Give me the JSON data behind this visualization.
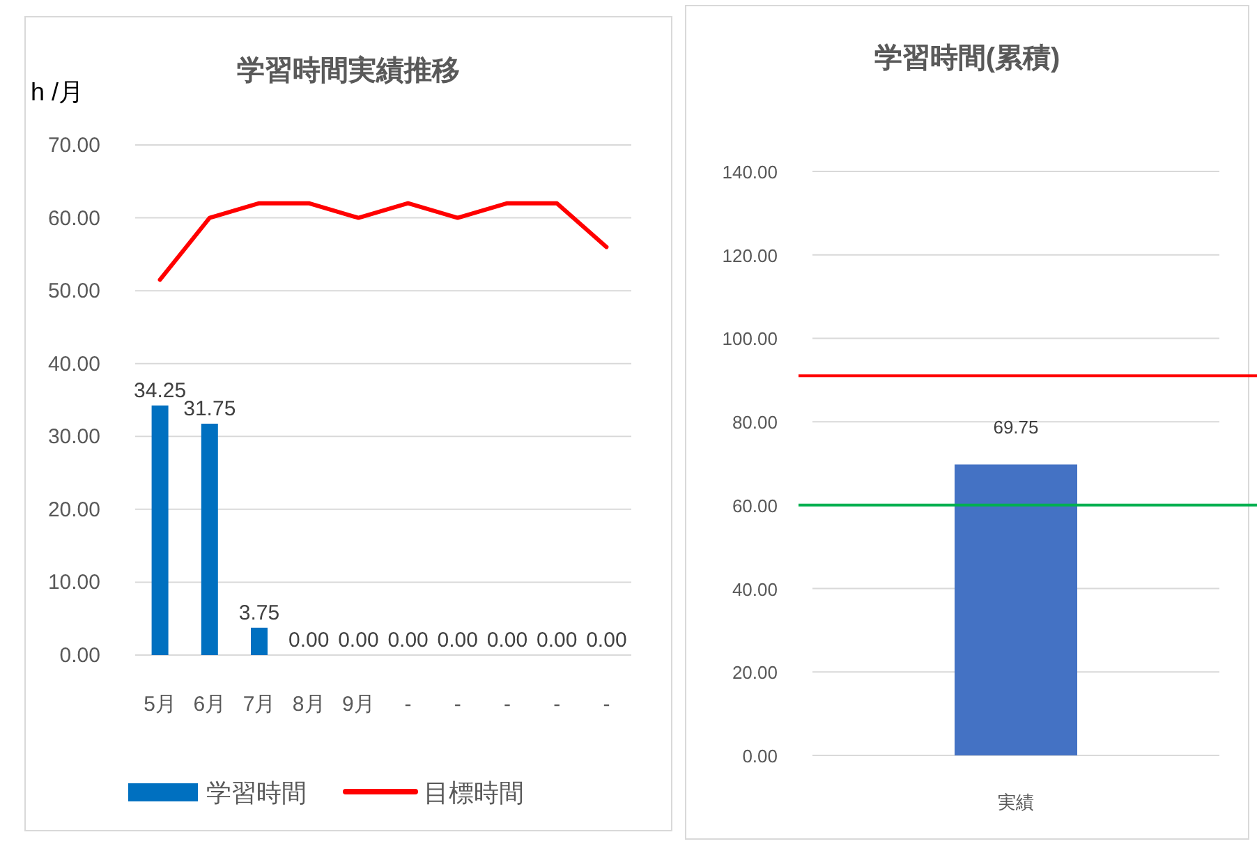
{
  "chart_data": [
    {
      "type": "bar",
      "title": "学習時間実績推移",
      "ylabel": "h /月",
      "categories": [
        "5月",
        "6月",
        "7月",
        "8月",
        "9月",
        "-",
        "-",
        "-",
        "-",
        "-"
      ],
      "series": [
        {
          "name": "学習時間",
          "type": "bar",
          "color": "#0070c0",
          "values": [
            34.25,
            31.75,
            3.75,
            0,
            0,
            0,
            0,
            0,
            0,
            0
          ],
          "value_labels": [
            "34.25",
            "31.75",
            "3.75",
            "0.00",
            "0.00",
            "0.00",
            "0.00",
            "0.00",
            "0.00",
            "0.00"
          ]
        },
        {
          "name": "目標時間",
          "type": "line",
          "color": "#ff0000",
          "values": [
            51.5,
            60,
            62,
            62,
            60,
            62,
            60,
            62,
            62,
            56
          ]
        }
      ],
      "ylim": [
        0,
        70
      ],
      "yticks": [
        {
          "value": 0,
          "label": "0.00"
        },
        {
          "value": 10,
          "label": "10.00"
        },
        {
          "value": 20,
          "label": "20.00"
        },
        {
          "value": 30,
          "label": "30.00"
        },
        {
          "value": 40,
          "label": "40.00"
        },
        {
          "value": 50,
          "label": "50.00"
        },
        {
          "value": 60,
          "label": "60.00"
        },
        {
          "value": 70,
          "label": "70.00"
        }
      ],
      "grid": "y",
      "legend": "bottom"
    },
    {
      "type": "bar",
      "title": "学習時間(累積)",
      "categories": [
        "実績"
      ],
      "values": [
        69.75
      ],
      "color": "#4472c4",
      "data_labels": true,
      "ylim": [
        0,
        140
      ],
      "yticks": [
        {
          "value": 0,
          "label": "0.00"
        },
        {
          "value": 20,
          "label": "20.00"
        },
        {
          "value": 40,
          "label": "40.00"
        },
        {
          "value": 60,
          "label": "60.00"
        },
        {
          "value": 80,
          "label": "80.00"
        },
        {
          "value": 100,
          "label": "100.00"
        },
        {
          "value": 120,
          "label": "120.00"
        },
        {
          "value": 140,
          "label": "140.00"
        }
      ],
      "grid": "y",
      "ref_lines": [
        {
          "axis": "y",
          "value": 91,
          "color": "#ff0000"
        },
        {
          "axis": "y",
          "value": 60,
          "color": "#00b050"
        }
      ]
    }
  ]
}
